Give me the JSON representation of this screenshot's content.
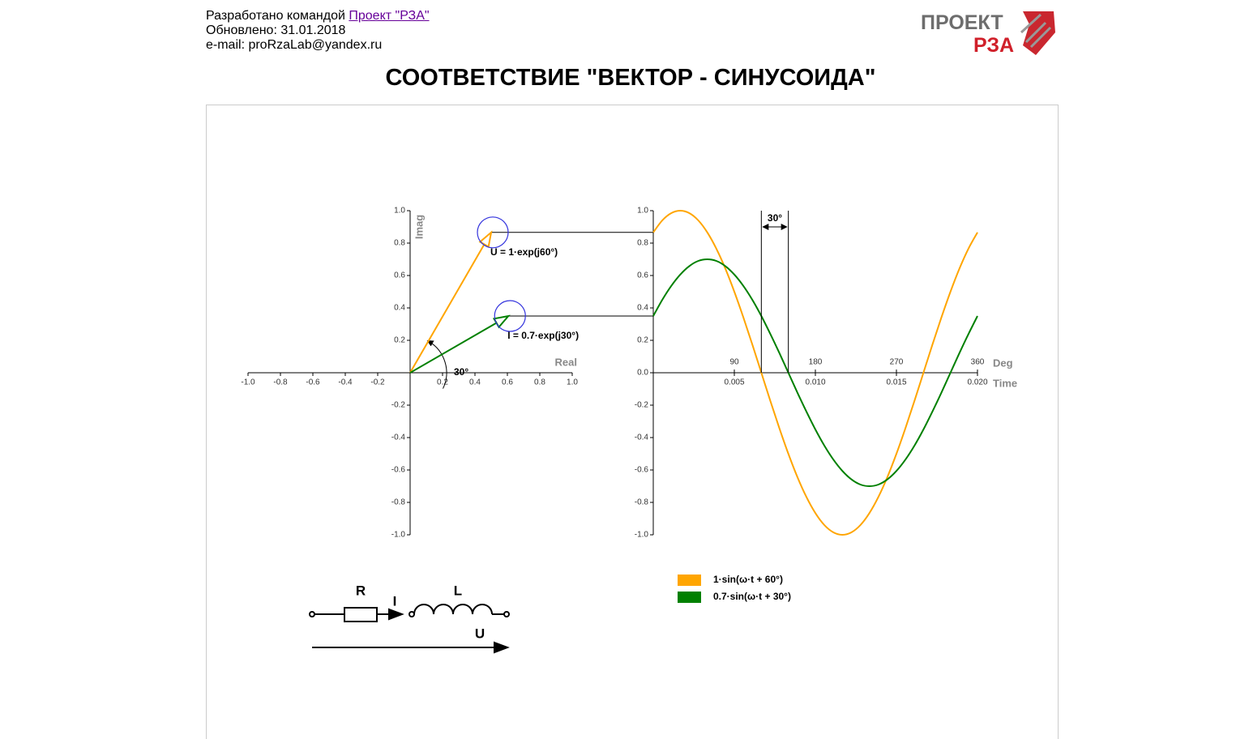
{
  "header": {
    "credit": "Разработано командой",
    "link": "Проект \"РЗА\"",
    "updated": "Обновлено: 31.01.2018",
    "email": "e-mail: proRzaLab@yandex.ru"
  },
  "logo": {
    "top": "ПРОЕКТ",
    "bottom": "РЗА"
  },
  "title": "СООТВЕТСТВИЕ \"ВЕКТОР - СИНУСОИДА\"",
  "chart_data": [
    {
      "type": "vector",
      "xlabel": "Real",
      "ylabel": "Imag",
      "annotation": "30°",
      "xlim": [
        -1,
        1
      ],
      "ylim": [
        -1,
        1
      ],
      "xticks": [
        {
          "value": -1,
          "label": "-1.0"
        },
        -0.8,
        -0.6,
        -0.4,
        -0.2,
        0.2,
        0.4,
        0.6,
        0.8,
        {
          "value": 1,
          "label": "1.0"
        }
      ],
      "yticks": [
        {
          "value": 1,
          "label": "1.0"
        },
        0.8,
        0.6,
        0.4,
        0.2,
        -0.2,
        -0.4,
        -0.6,
        -0.8,
        {
          "value": -1,
          "label": "-1.0"
        }
      ],
      "series": [
        {
          "name": "U = 1·exp(j60°)",
          "color": "#ffa500",
          "magnitude": 1,
          "angle": 60
        },
        {
          "name": "I = 0.7·exp(j30°)",
          "color": "#008000",
          "magnitude": 0.7,
          "angle": 30
        }
      ]
    },
    {
      "type": "line",
      "xlabel": "Deg",
      "x2label": "Time",
      "annotation": "30°",
      "xlim": [
        0,
        360
      ],
      "xticks": [
        90,
        180,
        270,
        360
      ],
      "x2lim": [
        0,
        0.02
      ],
      "x2ticks": [
        0.005,
        {
          "value": 0.01,
          "label": "0.010"
        },
        0.015,
        {
          "value": 0.02,
          "label": "0.020"
        }
      ],
      "ylim": [
        -1,
        1
      ],
      "yticks": [
        {
          "value": 1,
          "label": "1.0"
        },
        0.8,
        0.6,
        0.4,
        0.2,
        {
          "value": 0,
          "label": "0.0"
        },
        -0.2,
        -0.4,
        -0.6,
        -0.8,
        {
          "value": -1,
          "label": "-1.0"
        }
      ],
      "x": [
        0,
        10,
        20,
        30,
        40,
        50,
        60,
        70,
        80,
        90,
        100,
        110,
        120,
        130,
        140,
        150,
        160,
        170,
        180,
        190,
        200,
        210,
        220,
        230,
        240,
        250,
        260,
        270,
        280,
        290,
        300,
        310,
        320,
        330,
        340,
        350,
        360
      ],
      "series": [
        {
          "name": "1·sin(ω·t + 60°)",
          "color": "#ffa500",
          "values": [
            0.866,
            0.94,
            0.985,
            1,
            0.985,
            0.94,
            0.866,
            0.766,
            0.643,
            0.5,
            0.342,
            0.174,
            0,
            -0.174,
            -0.342,
            -0.5,
            -0.643,
            -0.766,
            -0.866,
            -0.94,
            -0.985,
            -1,
            -0.985,
            -0.94,
            -0.866,
            -0.766,
            -0.643,
            -0.5,
            -0.342,
            -0.174,
            0,
            0.174,
            0.342,
            0.5,
            0.643,
            0.766,
            0.866
          ]
        },
        {
          "name": "0.7·sin(ω·t + 30°)",
          "color": "#008000",
          "values": [
            0.35,
            0.45,
            0.536,
            0.606,
            0.658,
            0.69,
            0.7,
            0.69,
            0.658,
            0.606,
            0.536,
            0.45,
            0.35,
            0.239,
            0.122,
            0,
            -0.122,
            -0.239,
            -0.35,
            -0.45,
            -0.536,
            -0.606,
            -0.658,
            -0.69,
            -0.7,
            -0.69,
            -0.658,
            -0.606,
            -0.536,
            -0.45,
            -0.35,
            -0.239,
            -0.122,
            0,
            0.122,
            0.239,
            0.35
          ]
        }
      ]
    }
  ],
  "circuit": {
    "r": "R",
    "i": "I",
    "l": "L",
    "u": "U"
  }
}
